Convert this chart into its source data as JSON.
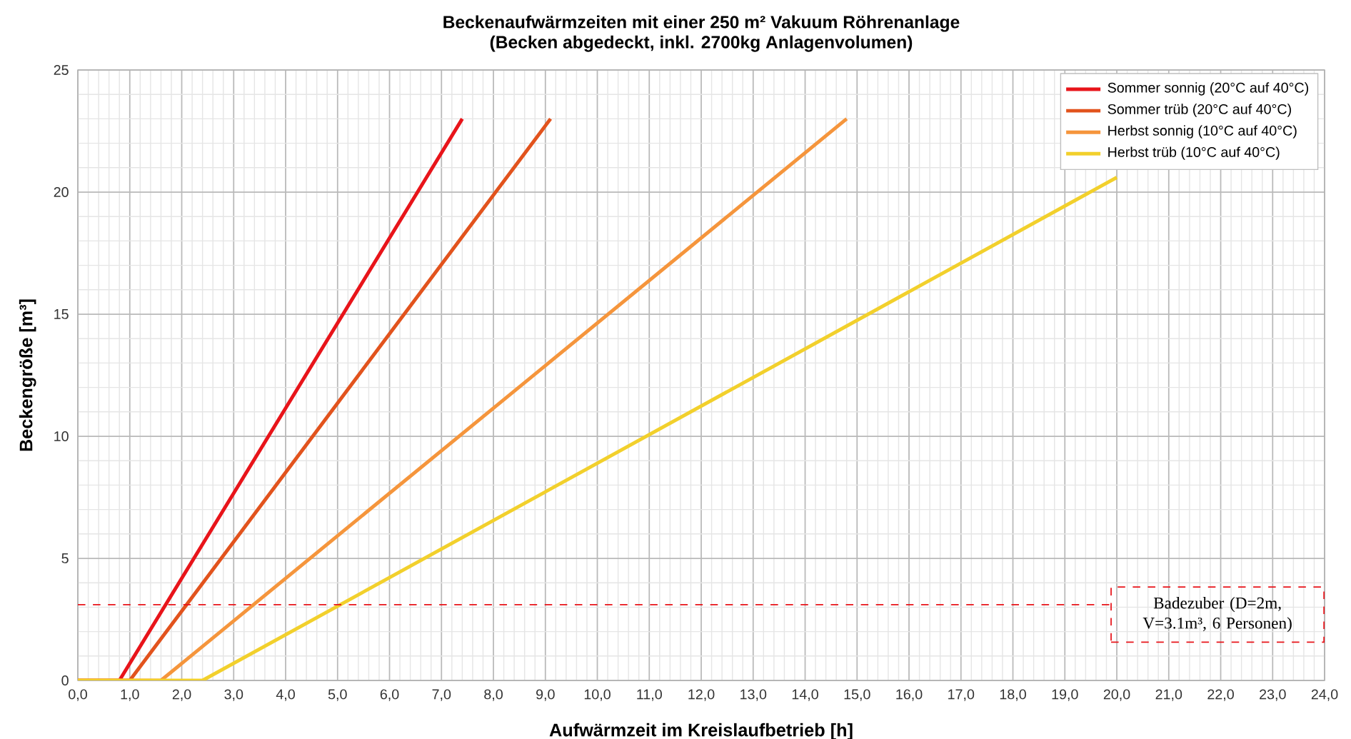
{
  "chart_data": {
    "type": "line",
    "title": "Beckenaufwärmzeiten mit einer 250 m² Vakuum Röhrenanlage",
    "subtitle": "(Becken abgedeckt, inkl. 2700kg Anlagenvolumen)",
    "xlabel": "Aufwärmzeit im Kreislaufbetrieb [h]",
    "ylabel": "Beckengröße [m³]",
    "series": [
      {
        "name": "Sommer sonnig (20°C auf 40°C)",
        "color": "#e8141a",
        "x": [
          0,
          0.8,
          7.4
        ],
        "values": [
          0,
          0,
          23
        ]
      },
      {
        "name": "Sommer trüb (20°C auf 40°C)",
        "color": "#e2531d",
        "x": [
          0,
          1.0,
          9.1
        ],
        "values": [
          0,
          0,
          23
        ]
      },
      {
        "name": "Herbst sonnig (10°C auf 40°C)",
        "color": "#f5953c",
        "x": [
          0,
          1.6,
          14.8
        ],
        "values": [
          0,
          0,
          23
        ]
      },
      {
        "name": "Herbst trüb (10°C auf 40°C)",
        "color": "#f2d02c",
        "x": [
          0,
          2.4,
          20.0
        ],
        "values": [
          0,
          0,
          20.6
        ]
      }
    ],
    "xlim": [
      0,
      24
    ],
    "ylim": [
      0,
      25
    ],
    "xticks": [
      {
        "value": 0,
        "label": "0,0"
      },
      {
        "value": 1,
        "label": "1,0"
      },
      {
        "value": 2,
        "label": "2,0"
      },
      {
        "value": 3,
        "label": "3,0"
      },
      {
        "value": 4,
        "label": "4,0"
      },
      {
        "value": 5,
        "label": "5,0"
      },
      {
        "value": 6,
        "label": "6,0"
      },
      {
        "value": 7,
        "label": "7,0"
      },
      {
        "value": 8,
        "label": "8,0"
      },
      {
        "value": 9,
        "label": "9,0"
      },
      {
        "value": 10,
        "label": "10,0"
      },
      {
        "value": 11,
        "label": "11,0"
      },
      {
        "value": 12,
        "label": "12,0"
      },
      {
        "value": 13,
        "label": "13,0"
      },
      {
        "value": 14,
        "label": "14,0"
      },
      {
        "value": 15,
        "label": "15,0"
      },
      {
        "value": 16,
        "label": "16,0"
      },
      {
        "value": 17,
        "label": "17,0"
      },
      {
        "value": 18,
        "label": "18,0"
      },
      {
        "value": 19,
        "label": "19,0"
      },
      {
        "value": 20,
        "label": "20,0"
      },
      {
        "value": 21,
        "label": "21,0"
      },
      {
        "value": 22,
        "label": "22,0"
      },
      {
        "value": 23,
        "label": "23,0"
      },
      {
        "value": 24,
        "label": "24,0"
      }
    ],
    "yticks": [
      0,
      5,
      10,
      15,
      20,
      25
    ],
    "ref_lines": [
      {
        "axis": "y",
        "value": 3.1,
        "label": "Badezuber (D=2m, V=3.1m³, 6 Personen)",
        "color": "#e8141a",
        "line_style": "dashed"
      }
    ],
    "grid": true,
    "legend": "top right"
  }
}
